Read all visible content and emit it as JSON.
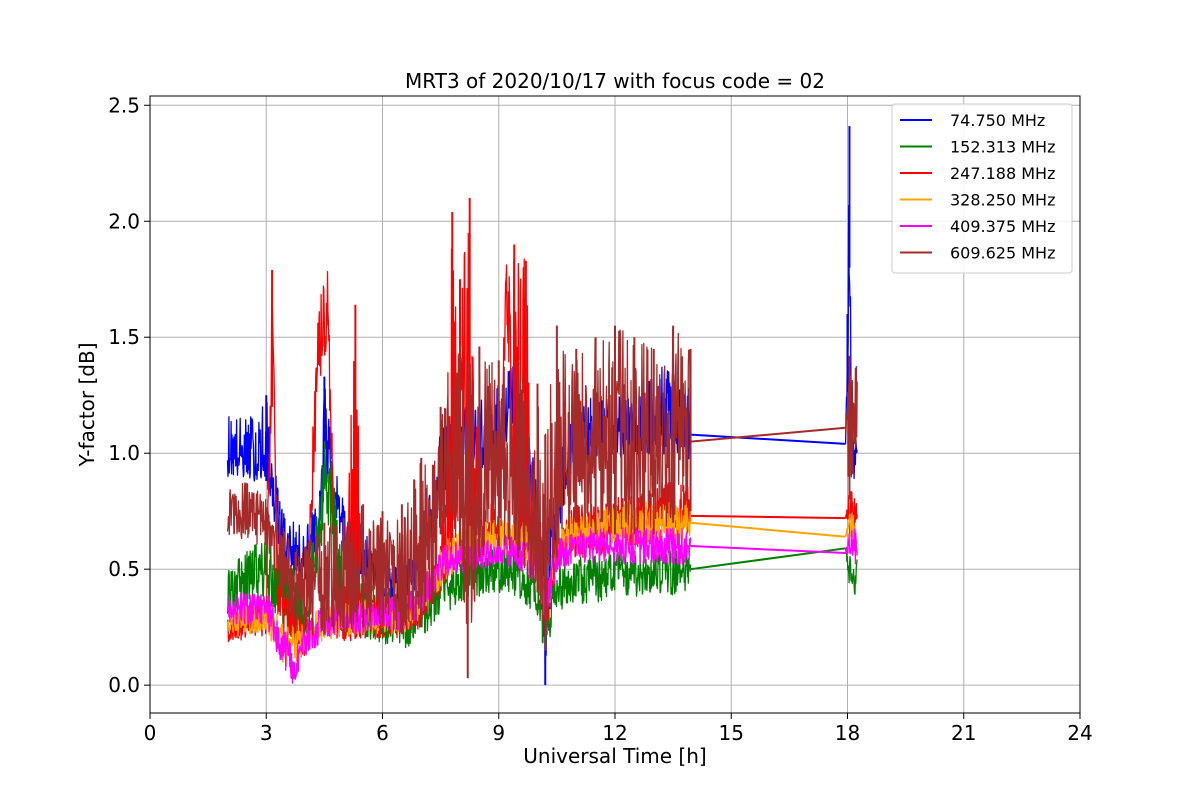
{
  "chart_data": {
    "type": "line",
    "title": "MRT3 of 2020/10/17 with focus code = 02",
    "xlabel": "Universal Time [h]",
    "ylabel": "Y-factor [dB]",
    "xlim": [
      0,
      24
    ],
    "ylim": [
      -0.12,
      2.54
    ],
    "xticks": [
      0,
      3,
      6,
      9,
      12,
      15,
      18,
      21,
      24
    ],
    "xtick_labels": [
      "0",
      "3",
      "6",
      "9",
      "12",
      "15",
      "18",
      "21",
      "24"
    ],
    "yticks": [
      0.0,
      0.5,
      1.0,
      1.5,
      2.0,
      2.5
    ],
    "ytick_labels": [
      "0.0",
      "0.5",
      "1.0",
      "1.5",
      "2.0",
      "2.5"
    ],
    "grid": true,
    "legend_position": "top-right",
    "series": [
      {
        "name": " 74.750 MHz",
        "color": "#0000ff",
        "x": [
          2.0,
          2.5,
          3.0,
          3.3,
          3.5,
          4.0,
          4.4,
          4.5,
          4.7,
          5.0,
          5.5,
          6.0,
          6.5,
          7.0,
          7.3,
          7.5,
          8.0,
          8.5,
          9.0,
          9.3,
          9.6,
          10.0,
          10.2,
          10.5,
          11.0,
          11.5,
          12.0,
          12.5,
          13.0,
          13.5,
          13.95,
          17.95,
          18.0,
          18.05,
          18.1,
          18.25
        ],
        "y": [
          1.0,
          0.98,
          0.95,
          0.72,
          0.6,
          0.55,
          0.7,
          1.2,
          0.9,
          0.65,
          0.55,
          0.45,
          0.4,
          0.55,
          0.75,
          0.9,
          1.0,
          1.05,
          1.1,
          1.2,
          1.1,
          0.75,
          0.35,
          0.8,
          1.05,
          1.1,
          1.1,
          1.1,
          1.1,
          1.12,
          1.08,
          1.04,
          1.5,
          2.3,
          1.0,
          0.95
        ],
        "peaks_min": [
          0.9,
          0.88,
          0.88,
          0.62,
          0.48,
          0.45,
          0.6,
          0.9,
          0.8,
          0.55,
          0.45,
          0.38,
          0.3,
          0.45,
          0.65,
          0.78,
          0.88,
          0.92,
          0.95,
          1.05,
          0.95,
          0.55,
          0.0,
          0.6,
          0.92,
          0.98,
          0.98,
          0.98,
          0.98,
          1.0,
          0.95,
          1.04,
          1.2,
          1.8,
          0.9,
          0.88
        ],
        "peaks_max": [
          1.18,
          1.15,
          1.25,
          0.85,
          0.72,
          0.68,
          0.85,
          1.33,
          1.05,
          0.78,
          0.68,
          0.55,
          0.5,
          0.68,
          0.9,
          1.1,
          1.2,
          1.25,
          1.3,
          1.42,
          1.25,
          0.9,
          0.6,
          1.05,
          1.2,
          1.25,
          1.25,
          1.3,
          1.35,
          1.4,
          1.33,
          1.04,
          1.6,
          2.41,
          1.15,
          1.05
        ]
      },
      {
        "name": "152.313 MHz",
        "color": "#008000",
        "x": [
          2.0,
          2.5,
          3.0,
          3.5,
          4.0,
          4.4,
          4.5,
          4.7,
          5.0,
          5.5,
          6.0,
          6.5,
          7.0,
          7.5,
          8.0,
          8.5,
          9.0,
          9.5,
          10.0,
          10.2,
          10.5,
          11.0,
          11.5,
          12.0,
          12.5,
          13.0,
          13.5,
          13.95,
          17.95,
          18.05,
          18.25
        ],
        "y": [
          0.42,
          0.48,
          0.5,
          0.4,
          0.3,
          0.7,
          0.95,
          0.8,
          0.35,
          0.3,
          0.3,
          0.25,
          0.3,
          0.4,
          0.45,
          0.48,
          0.5,
          0.48,
          0.4,
          0.25,
          0.42,
          0.45,
          0.45,
          0.48,
          0.48,
          0.5,
          0.48,
          0.5,
          0.59,
          0.5,
          0.48
        ],
        "peaks_min": [
          0.3,
          0.35,
          0.35,
          0.22,
          0.12,
          0.5,
          0.8,
          0.55,
          0.2,
          0.2,
          0.18,
          0.15,
          0.2,
          0.3,
          0.35,
          0.38,
          0.4,
          0.38,
          0.3,
          0.12,
          0.32,
          0.35,
          0.35,
          0.38,
          0.38,
          0.4,
          0.38,
          0.42,
          0.59,
          0.4,
          0.38
        ],
        "peaks_max": [
          0.5,
          0.58,
          0.65,
          0.55,
          0.42,
          0.9,
          1.08,
          0.95,
          0.48,
          0.45,
          0.45,
          0.4,
          0.45,
          0.5,
          0.55,
          0.58,
          0.6,
          0.58,
          0.5,
          0.38,
          0.52,
          0.55,
          0.56,
          0.58,
          0.58,
          0.6,
          0.58,
          0.6,
          0.59,
          0.58,
          0.55
        ]
      },
      {
        "name": "247.188 MHz",
        "color": "#ff0000",
        "x": [
          2.0,
          2.5,
          3.0,
          3.15,
          3.3,
          3.5,
          4.0,
          4.35,
          4.6,
          4.8,
          5.0,
          5.3,
          5.5,
          6.0,
          6.5,
          7.0,
          7.5,
          7.8,
          8.0,
          8.25,
          8.5,
          9.0,
          9.2,
          9.4,
          9.7,
          10.0,
          10.2,
          10.5,
          11.0,
          11.5,
          12.0,
          12.5,
          13.0,
          13.5,
          13.95,
          17.95,
          18.05,
          18.25
        ],
        "y": [
          0.22,
          0.25,
          0.3,
          1.6,
          0.4,
          0.3,
          0.2,
          1.5,
          1.6,
          0.3,
          0.25,
          0.3,
          0.28,
          0.3,
          0.3,
          0.35,
          0.5,
          0.6,
          1.5,
          0.9,
          0.65,
          0.7,
          1.75,
          0.7,
          0.65,
          0.55,
          0.3,
          0.6,
          0.65,
          0.65,
          0.7,
          0.7,
          0.72,
          0.75,
          0.73,
          0.72,
          0.75,
          0.72
        ],
        "peaks_min": [
          0.18,
          0.2,
          0.2,
          1.2,
          0.3,
          0.2,
          0.12,
          1.3,
          1.4,
          0.2,
          0.18,
          0.2,
          0.2,
          0.2,
          0.2,
          0.25,
          0.4,
          0.5,
          0.9,
          0.6,
          0.55,
          0.6,
          1.6,
          0.6,
          0.55,
          0.45,
          0.2,
          0.5,
          0.55,
          0.55,
          0.6,
          0.6,
          0.62,
          0.65,
          0.65,
          0.72,
          0.65,
          0.65
        ],
        "peaks_max": [
          0.3,
          0.32,
          0.4,
          1.79,
          0.5,
          0.4,
          0.28,
          1.72,
          1.82,
          0.4,
          0.35,
          1.64,
          0.38,
          0.4,
          0.4,
          0.45,
          0.6,
          2.04,
          1.75,
          2.1,
          0.75,
          0.8,
          1.93,
          1.9,
          1.83,
          0.65,
          0.4,
          0.7,
          0.78,
          0.8,
          0.82,
          0.82,
          0.85,
          0.88,
          0.85,
          0.72,
          0.85,
          0.8
        ]
      },
      {
        "name": "328.250 MHz",
        "color": "#ffa500",
        "x": [
          2.0,
          2.5,
          3.0,
          3.5,
          4.0,
          4.5,
          5.0,
          5.5,
          6.0,
          6.5,
          7.0,
          7.5,
          8.0,
          8.5,
          9.0,
          9.5,
          10.0,
          10.2,
          10.5,
          11.0,
          11.5,
          12.0,
          12.5,
          13.0,
          13.5,
          13.95,
          17.95,
          18.05,
          18.25
        ],
        "y": [
          0.25,
          0.28,
          0.3,
          0.15,
          0.2,
          0.28,
          0.28,
          0.3,
          0.3,
          0.3,
          0.35,
          0.5,
          0.58,
          0.6,
          0.62,
          0.62,
          0.55,
          0.35,
          0.6,
          0.65,
          0.65,
          0.68,
          0.68,
          0.7,
          0.7,
          0.7,
          0.64,
          0.68,
          0.66
        ],
        "peaks_min": [
          0.2,
          0.22,
          0.22,
          0.05,
          0.12,
          0.2,
          0.2,
          0.22,
          0.22,
          0.22,
          0.28,
          0.42,
          0.5,
          0.52,
          0.55,
          0.55,
          0.45,
          0.25,
          0.52,
          0.58,
          0.58,
          0.6,
          0.6,
          0.62,
          0.62,
          0.62,
          0.64,
          0.6,
          0.6
        ],
        "peaks_max": [
          0.32,
          0.35,
          0.38,
          0.25,
          0.3,
          0.35,
          0.35,
          0.38,
          0.38,
          0.38,
          0.42,
          0.6,
          0.68,
          0.7,
          0.72,
          0.72,
          0.65,
          0.45,
          0.7,
          0.75,
          0.75,
          0.78,
          0.78,
          0.8,
          0.8,
          0.8,
          0.64,
          0.75,
          0.72
        ]
      },
      {
        "name": "409.375 MHz",
        "color": "#ff00ff",
        "x": [
          2.0,
          2.5,
          3.0,
          3.5,
          3.7,
          4.0,
          4.5,
          5.0,
          5.5,
          6.0,
          6.5,
          7.0,
          7.5,
          8.0,
          8.5,
          9.0,
          9.5,
          10.0,
          10.2,
          10.5,
          11.0,
          11.5,
          12.0,
          12.5,
          13.0,
          13.5,
          13.95,
          17.95,
          18.05,
          18.25
        ],
        "y": [
          0.32,
          0.32,
          0.32,
          0.15,
          0.05,
          0.2,
          0.28,
          0.3,
          0.3,
          0.32,
          0.3,
          0.38,
          0.52,
          0.55,
          0.57,
          0.57,
          0.57,
          0.5,
          0.35,
          0.55,
          0.58,
          0.6,
          0.6,
          0.6,
          0.6,
          0.6,
          0.6,
          0.57,
          0.6,
          0.6
        ],
        "peaks_min": [
          0.25,
          0.25,
          0.25,
          0.05,
          0.0,
          0.12,
          0.2,
          0.22,
          0.22,
          0.25,
          0.22,
          0.3,
          0.45,
          0.48,
          0.5,
          0.5,
          0.5,
          0.42,
          0.25,
          0.48,
          0.52,
          0.52,
          0.52,
          0.52,
          0.52,
          0.52,
          0.52,
          0.57,
          0.52,
          0.52
        ],
        "peaks_max": [
          0.4,
          0.4,
          0.4,
          0.25,
          0.15,
          0.28,
          0.35,
          0.38,
          0.38,
          0.4,
          0.38,
          0.45,
          0.6,
          0.63,
          0.65,
          0.65,
          0.65,
          0.58,
          0.45,
          0.63,
          0.66,
          0.68,
          0.68,
          0.68,
          0.68,
          0.68,
          0.68,
          0.57,
          0.68,
          0.68
        ]
      },
      {
        "name": "609.625 MHz",
        "color": "#a52a2a",
        "x": [
          2.0,
          2.5,
          3.0,
          3.3,
          3.5,
          4.0,
          4.5,
          5.0,
          5.5,
          6.0,
          6.5,
          7.0,
          7.3,
          7.5,
          8.0,
          8.2,
          8.5,
          9.0,
          9.5,
          10.0,
          10.2,
          10.5,
          11.0,
          11.5,
          12.0,
          12.5,
          13.0,
          13.5,
          13.95,
          17.95,
          18.05,
          18.25
        ],
        "y": [
          0.75,
          0.75,
          0.7,
          0.6,
          0.45,
          0.4,
          0.42,
          0.4,
          0.45,
          0.45,
          0.45,
          0.45,
          0.6,
          0.85,
          0.95,
          0.5,
          0.95,
          0.95,
          0.9,
          0.75,
          0.45,
          0.9,
          1.0,
          1.0,
          1.0,
          1.0,
          1.0,
          1.05,
          1.05,
          1.11,
          1.25,
          1.25
        ],
        "peaks_min": [
          0.65,
          0.62,
          0.58,
          0.45,
          0.28,
          0.2,
          0.22,
          0.22,
          0.25,
          0.25,
          0.22,
          0.25,
          0.35,
          0.65,
          0.6,
          0.03,
          0.55,
          0.6,
          0.55,
          0.4,
          0.15,
          0.55,
          0.7,
          0.65,
          0.65,
          0.65,
          0.65,
          0.7,
          0.75,
          1.11,
          0.8,
          1.05
        ],
        "peaks_max": [
          0.85,
          0.88,
          0.82,
          0.78,
          0.65,
          0.6,
          0.7,
          0.72,
          0.78,
          0.75,
          0.78,
          0.98,
          0.95,
          1.2,
          1.46,
          1.4,
          1.46,
          1.4,
          1.4,
          1.3,
          1.08,
          1.55,
          1.45,
          1.5,
          1.55,
          1.5,
          1.45,
          1.55,
          1.45,
          1.11,
          1.42,
          1.38
        ]
      }
    ]
  }
}
